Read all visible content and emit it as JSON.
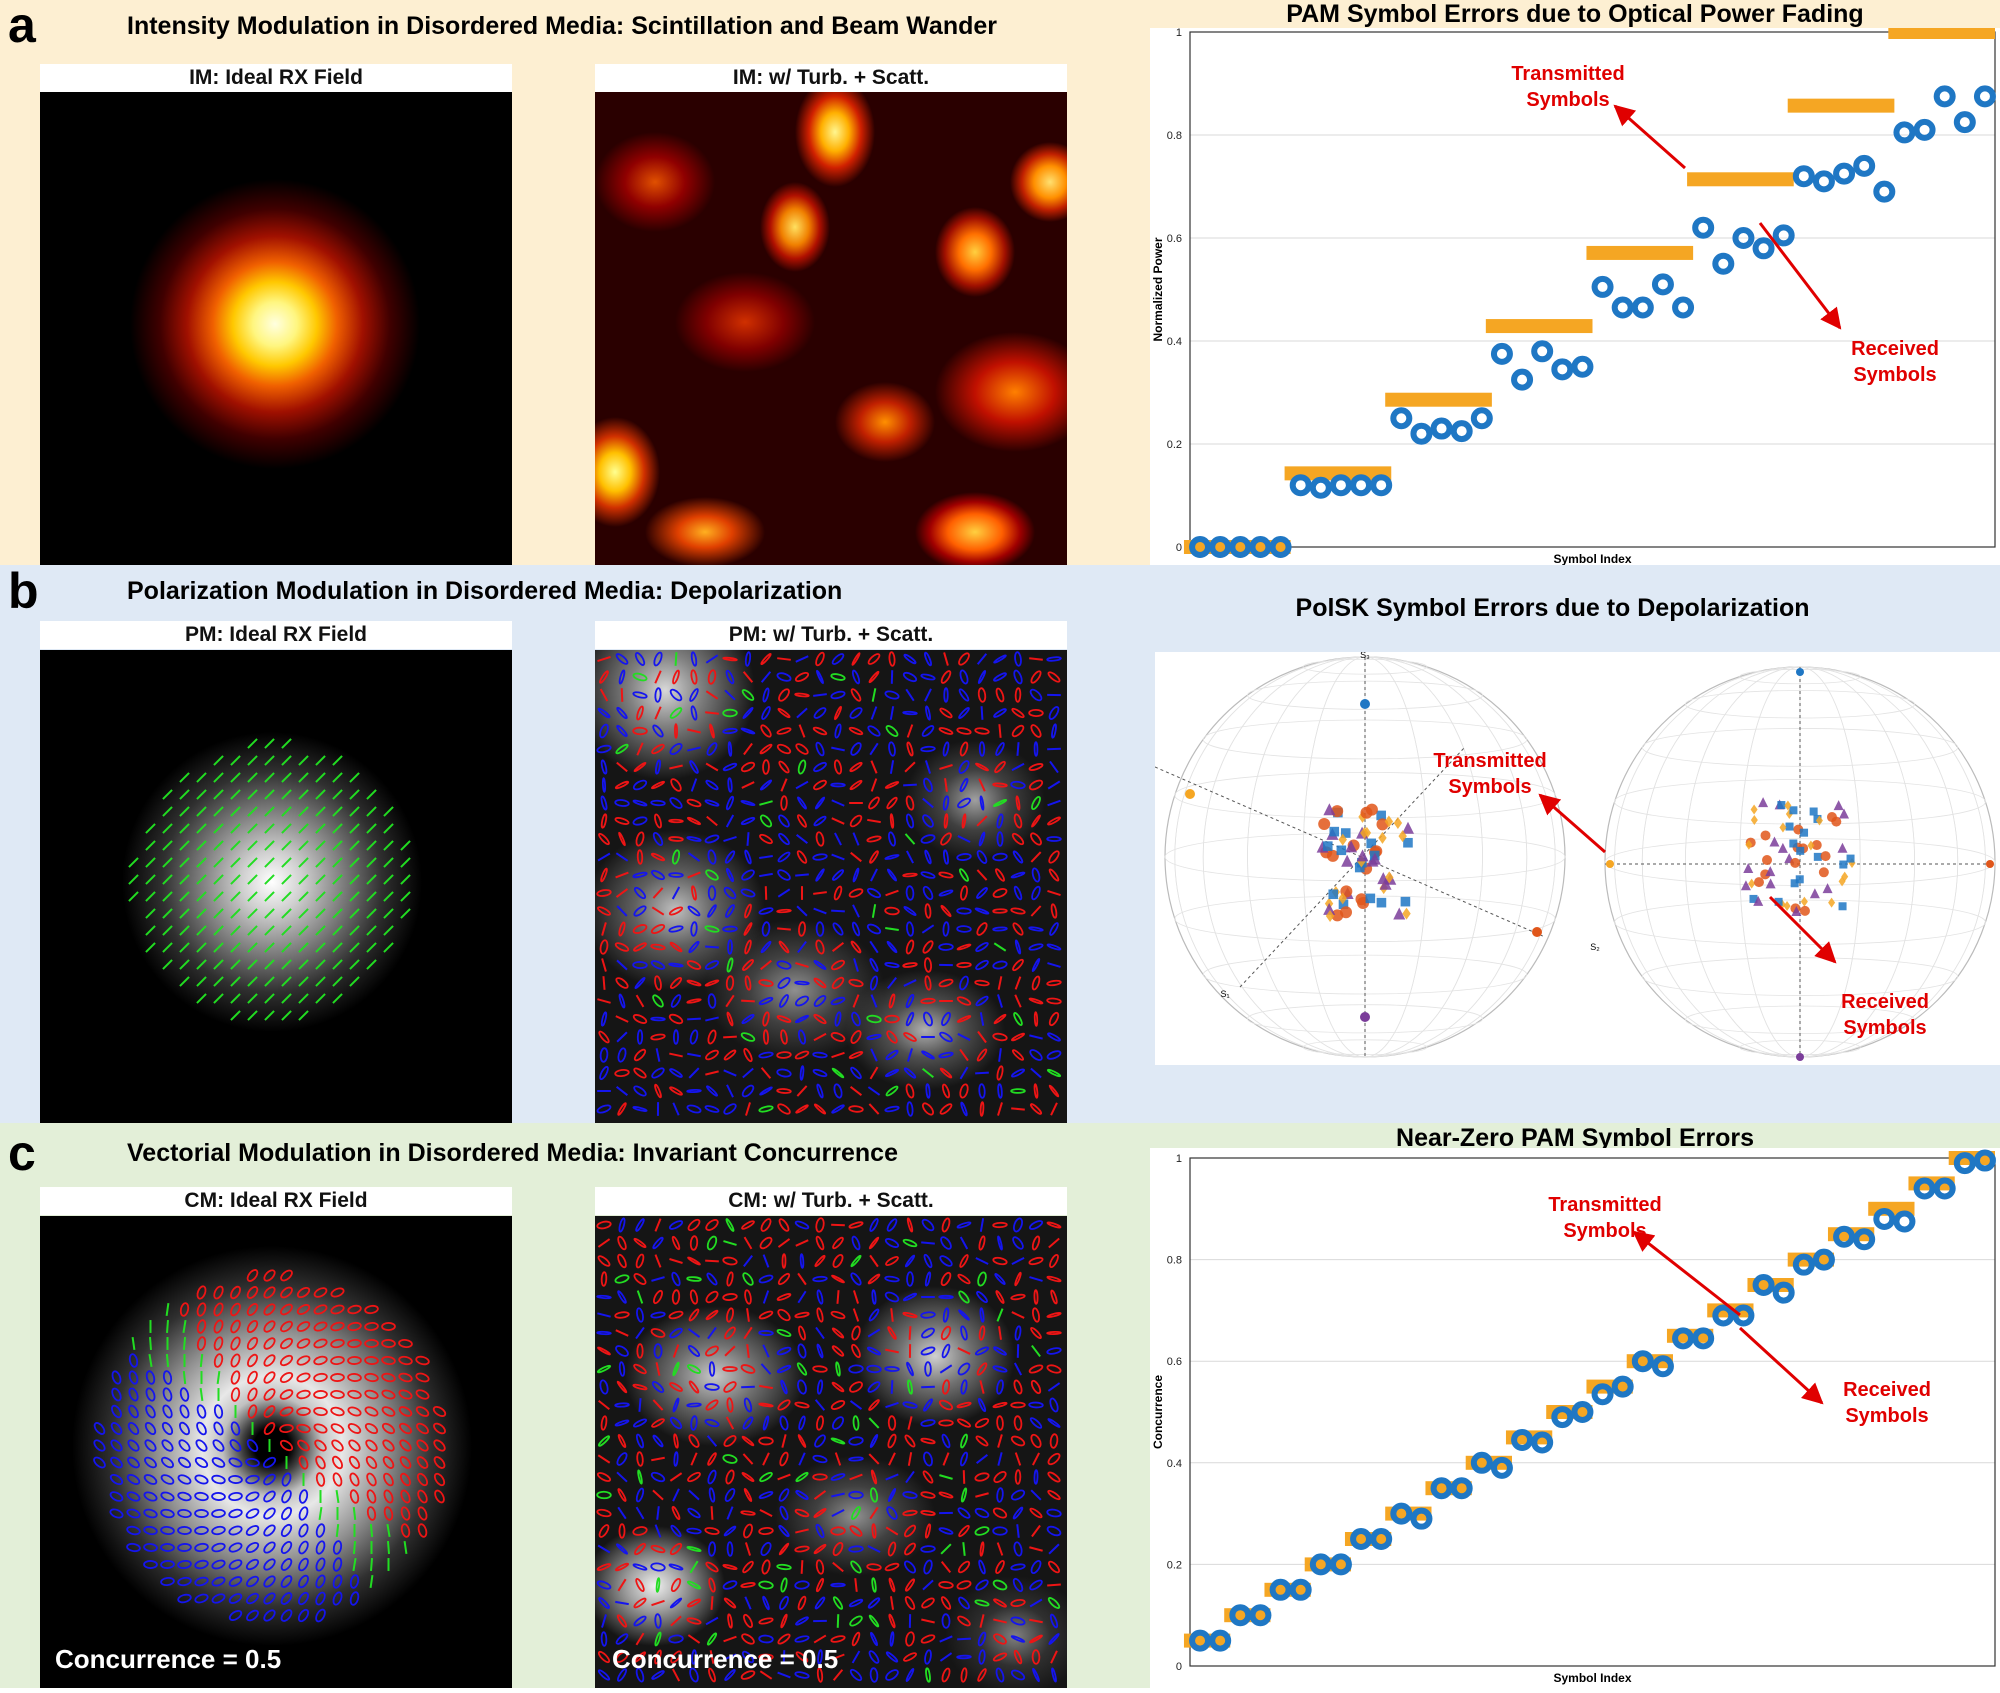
{
  "panel_a": {
    "letter": "a",
    "title": "Intensity Modulation in Disordered Media: Scintillation and Beam Wander",
    "img1_title": "IM: Ideal RX Field",
    "img2_title": "IM: w/ Turb. + Scatt.",
    "chart_title": "PAM Symbol Errors due to Optical Power Fading",
    "annot_tx": [
      "Transmitted",
      "Symbols"
    ],
    "annot_rx": [
      "Received",
      "Symbols"
    ]
  },
  "panel_b": {
    "letter": "b",
    "title": "Polarization Modulation in Disordered Media: Depolarization",
    "img1_title": "PM: Ideal RX Field",
    "img2_title": "PM: w/ Turb. + Scatt.",
    "chart_title": "PolSK Symbol Errors due to Depolarization",
    "annot_tx": [
      "Transmitted",
      "Symbols"
    ],
    "annot_rx": [
      "Received",
      "Symbols"
    ],
    "axis_labels": {
      "s1": "S₁",
      "s2": "S₂",
      "s3": "S₃"
    }
  },
  "panel_c": {
    "letter": "c",
    "title": "Vectorial Modulation in Disordered Media: Invariant Concurrence",
    "img1_title": "CM: Ideal RX Field",
    "img2_title": "CM: w/ Turb. + Scatt.",
    "chart_title": "Near-Zero PAM Symbol Errors",
    "annot_tx": [
      "Transmitted",
      "Symbols"
    ],
    "annot_rx": [
      "Received",
      "Symbols"
    ],
    "concurrence_1": "Concurrence = 0.5",
    "concurrence_2": "Concurrence = 0.5"
  },
  "colors": {
    "band_a": "#fdefd2",
    "band_b": "#dfe9f5",
    "band_c": "#e3efd8",
    "transmitted": "#f5a623",
    "received": "#1f77c4",
    "annotation": "#e00000"
  },
  "chart_data": [
    {
      "type": "scatter",
      "title": "PAM Symbol Errors due to Optical Power Fading",
      "xlabel": "Symbol Index",
      "ylabel": "Normalized Power",
      "ylim": [
        0,
        1
      ],
      "yticks": [
        "0",
        "0.2",
        "0.4",
        "0.6",
        "0.8",
        "1"
      ],
      "grid": true,
      "transmitted_levels": [
        0,
        0.143,
        0.286,
        0.429,
        0.571,
        0.714,
        0.857,
        1.0
      ],
      "received": [
        0,
        0,
        0,
        0,
        0,
        0.12,
        0.115,
        0.12,
        0.12,
        0.12,
        0.25,
        0.22,
        0.23,
        0.225,
        0.25,
        0.375,
        0.325,
        0.38,
        0.345,
        0.35,
        0.505,
        0.465,
        0.465,
        0.51,
        0.465,
        0.62,
        0.55,
        0.6,
        0.58,
        0.605,
        0.72,
        0.71,
        0.725,
        0.74,
        0.69,
        0.805,
        0.81,
        0.875,
        0.825,
        0.875
      ]
    },
    {
      "type": "scatter",
      "title": "PolSK Symbol Errors due to Depolarization",
      "series": [
        {
          "name": "Transmitted Symbols"
        },
        {
          "name": "Received Symbols"
        }
      ]
    },
    {
      "type": "scatter",
      "title": "Near-Zero PAM Symbol Errors",
      "xlabel": "Symbol Index",
      "ylabel": "Concurrence",
      "ylim": [
        0,
        1
      ],
      "yticks": [
        "0",
        "0.2",
        "0.4",
        "0.6",
        "0.8",
        "1"
      ],
      "grid": true,
      "transmitted_levels": [
        0.05,
        0.1,
        0.15,
        0.2,
        0.25,
        0.3,
        0.35,
        0.4,
        0.45,
        0.5,
        0.55,
        0.6,
        0.65,
        0.7,
        0.75,
        0.8,
        0.85,
        0.9,
        0.95,
        1.0
      ],
      "received": [
        0.05,
        0.05,
        0.1,
        0.1,
        0.15,
        0.15,
        0.2,
        0.2,
        0.25,
        0.25,
        0.3,
        0.29,
        0.35,
        0.35,
        0.4,
        0.39,
        0.445,
        0.44,
        0.49,
        0.5,
        0.535,
        0.55,
        0.6,
        0.59,
        0.645,
        0.645,
        0.69,
        0.69,
        0.75,
        0.735,
        0.79,
        0.8,
        0.845,
        0.84,
        0.88,
        0.875,
        0.94,
        0.94,
        0.99,
        0.995
      ]
    }
  ]
}
